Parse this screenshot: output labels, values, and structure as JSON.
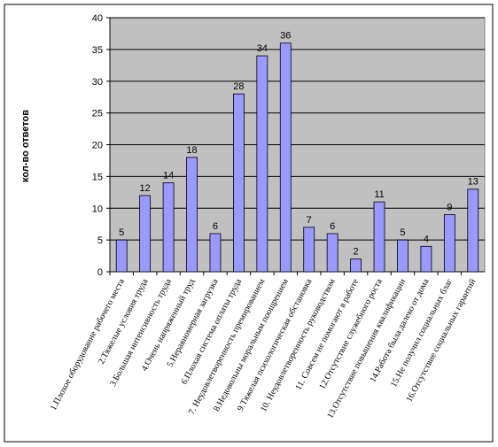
{
  "chart_data": {
    "type": "bar",
    "y_label": "кол-во ответов",
    "categories": [
      "1.Плохое оборудование рабочего места",
      "2.Тяжелые условия труда",
      "3.Большая интенсивность труда",
      "4.Очень напряженный труд",
      "5.Неравномерная загрузка",
      "6.Плохая система оплаты труда",
      "7. Неудовлетворенность премированием",
      "8.Недовольны моральным поощрением",
      "9.Тяжелая психологическая обстановка",
      "10. Неудовлетворенность руководством",
      "11. Совсем не помогают в работе",
      "12.Отсутствие служебного роста",
      "13.Отсутствие повышения квалификации",
      "14.Работа была далеко от дома",
      "15.Не получил социальных благ",
      "16.Отсутствие социальных гарантий"
    ],
    "values": [
      5,
      12,
      14,
      18,
      6,
      28,
      34,
      36,
      7,
      6,
      2,
      11,
      5,
      4,
      9,
      13
    ],
    "color": "#9999ff",
    "ylim": [
      0,
      40
    ],
    "yticks": [
      0,
      5,
      10,
      15,
      20,
      25,
      30,
      35,
      40
    ],
    "grid": true
  }
}
